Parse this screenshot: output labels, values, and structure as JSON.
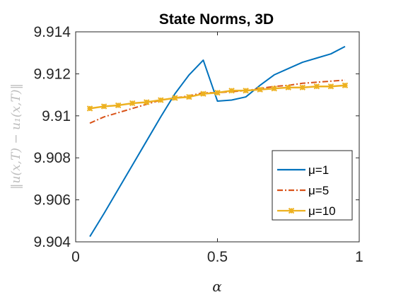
{
  "chart_data": {
    "type": "line",
    "title": "State Norms, 3D",
    "xlabel": "α",
    "ylabel": "‖u(x,T) − u₁(x,T)‖",
    "xlim": [
      0,
      1
    ],
    "ylim": [
      9.904,
      9.914
    ],
    "x_ticks": [
      0,
      0.5,
      1
    ],
    "x_tick_labels": [
      "0",
      "0.5",
      "1"
    ],
    "y_ticks": [
      9.904,
      9.906,
      9.908,
      9.91,
      9.912,
      9.914
    ],
    "y_tick_labels": [
      "9.904",
      "9.906",
      "9.908",
      "9.91",
      "9.912",
      "9.914"
    ],
    "grid": false,
    "legend_position": "lower-right",
    "x": [
      0.05,
      0.1,
      0.15,
      0.2,
      0.25,
      0.3,
      0.35,
      0.4,
      0.45,
      0.5,
      0.55,
      0.6,
      0.65,
      0.7,
      0.75,
      0.8,
      0.85,
      0.9,
      0.95
    ],
    "series": [
      {
        "name": "μ=1",
        "color": "#0072bd",
        "style": "solid",
        "marker": "none",
        "values": [
          9.90425,
          9.90535,
          9.9065,
          9.90765,
          9.9088,
          9.90995,
          9.91105,
          9.91195,
          9.91265,
          9.9107,
          9.91075,
          9.9109,
          9.91145,
          9.91195,
          9.91225,
          9.91255,
          9.91275,
          9.91295,
          9.9133
        ]
      },
      {
        "name": "μ=5",
        "color": "#d95319",
        "style": "dashdot",
        "marker": "none",
        "values": [
          9.90965,
          9.90995,
          9.91015,
          9.91035,
          9.91055,
          9.91075,
          9.91085,
          9.91095,
          9.9111,
          9.9111,
          9.91115,
          9.9112,
          9.9113,
          9.9114,
          9.91145,
          9.91155,
          9.9116,
          9.91165,
          9.9117
        ]
      },
      {
        "name": "μ=10",
        "color": "#edb120",
        "style": "solid",
        "marker": "asterisk",
        "values": [
          9.91035,
          9.91045,
          9.9105,
          9.9106,
          9.91065,
          9.91075,
          9.91085,
          9.9109,
          9.91105,
          9.9111,
          9.9112,
          9.9112,
          9.91125,
          9.9113,
          9.91135,
          9.91135,
          9.9114,
          9.9114,
          9.91145
        ]
      }
    ]
  }
}
